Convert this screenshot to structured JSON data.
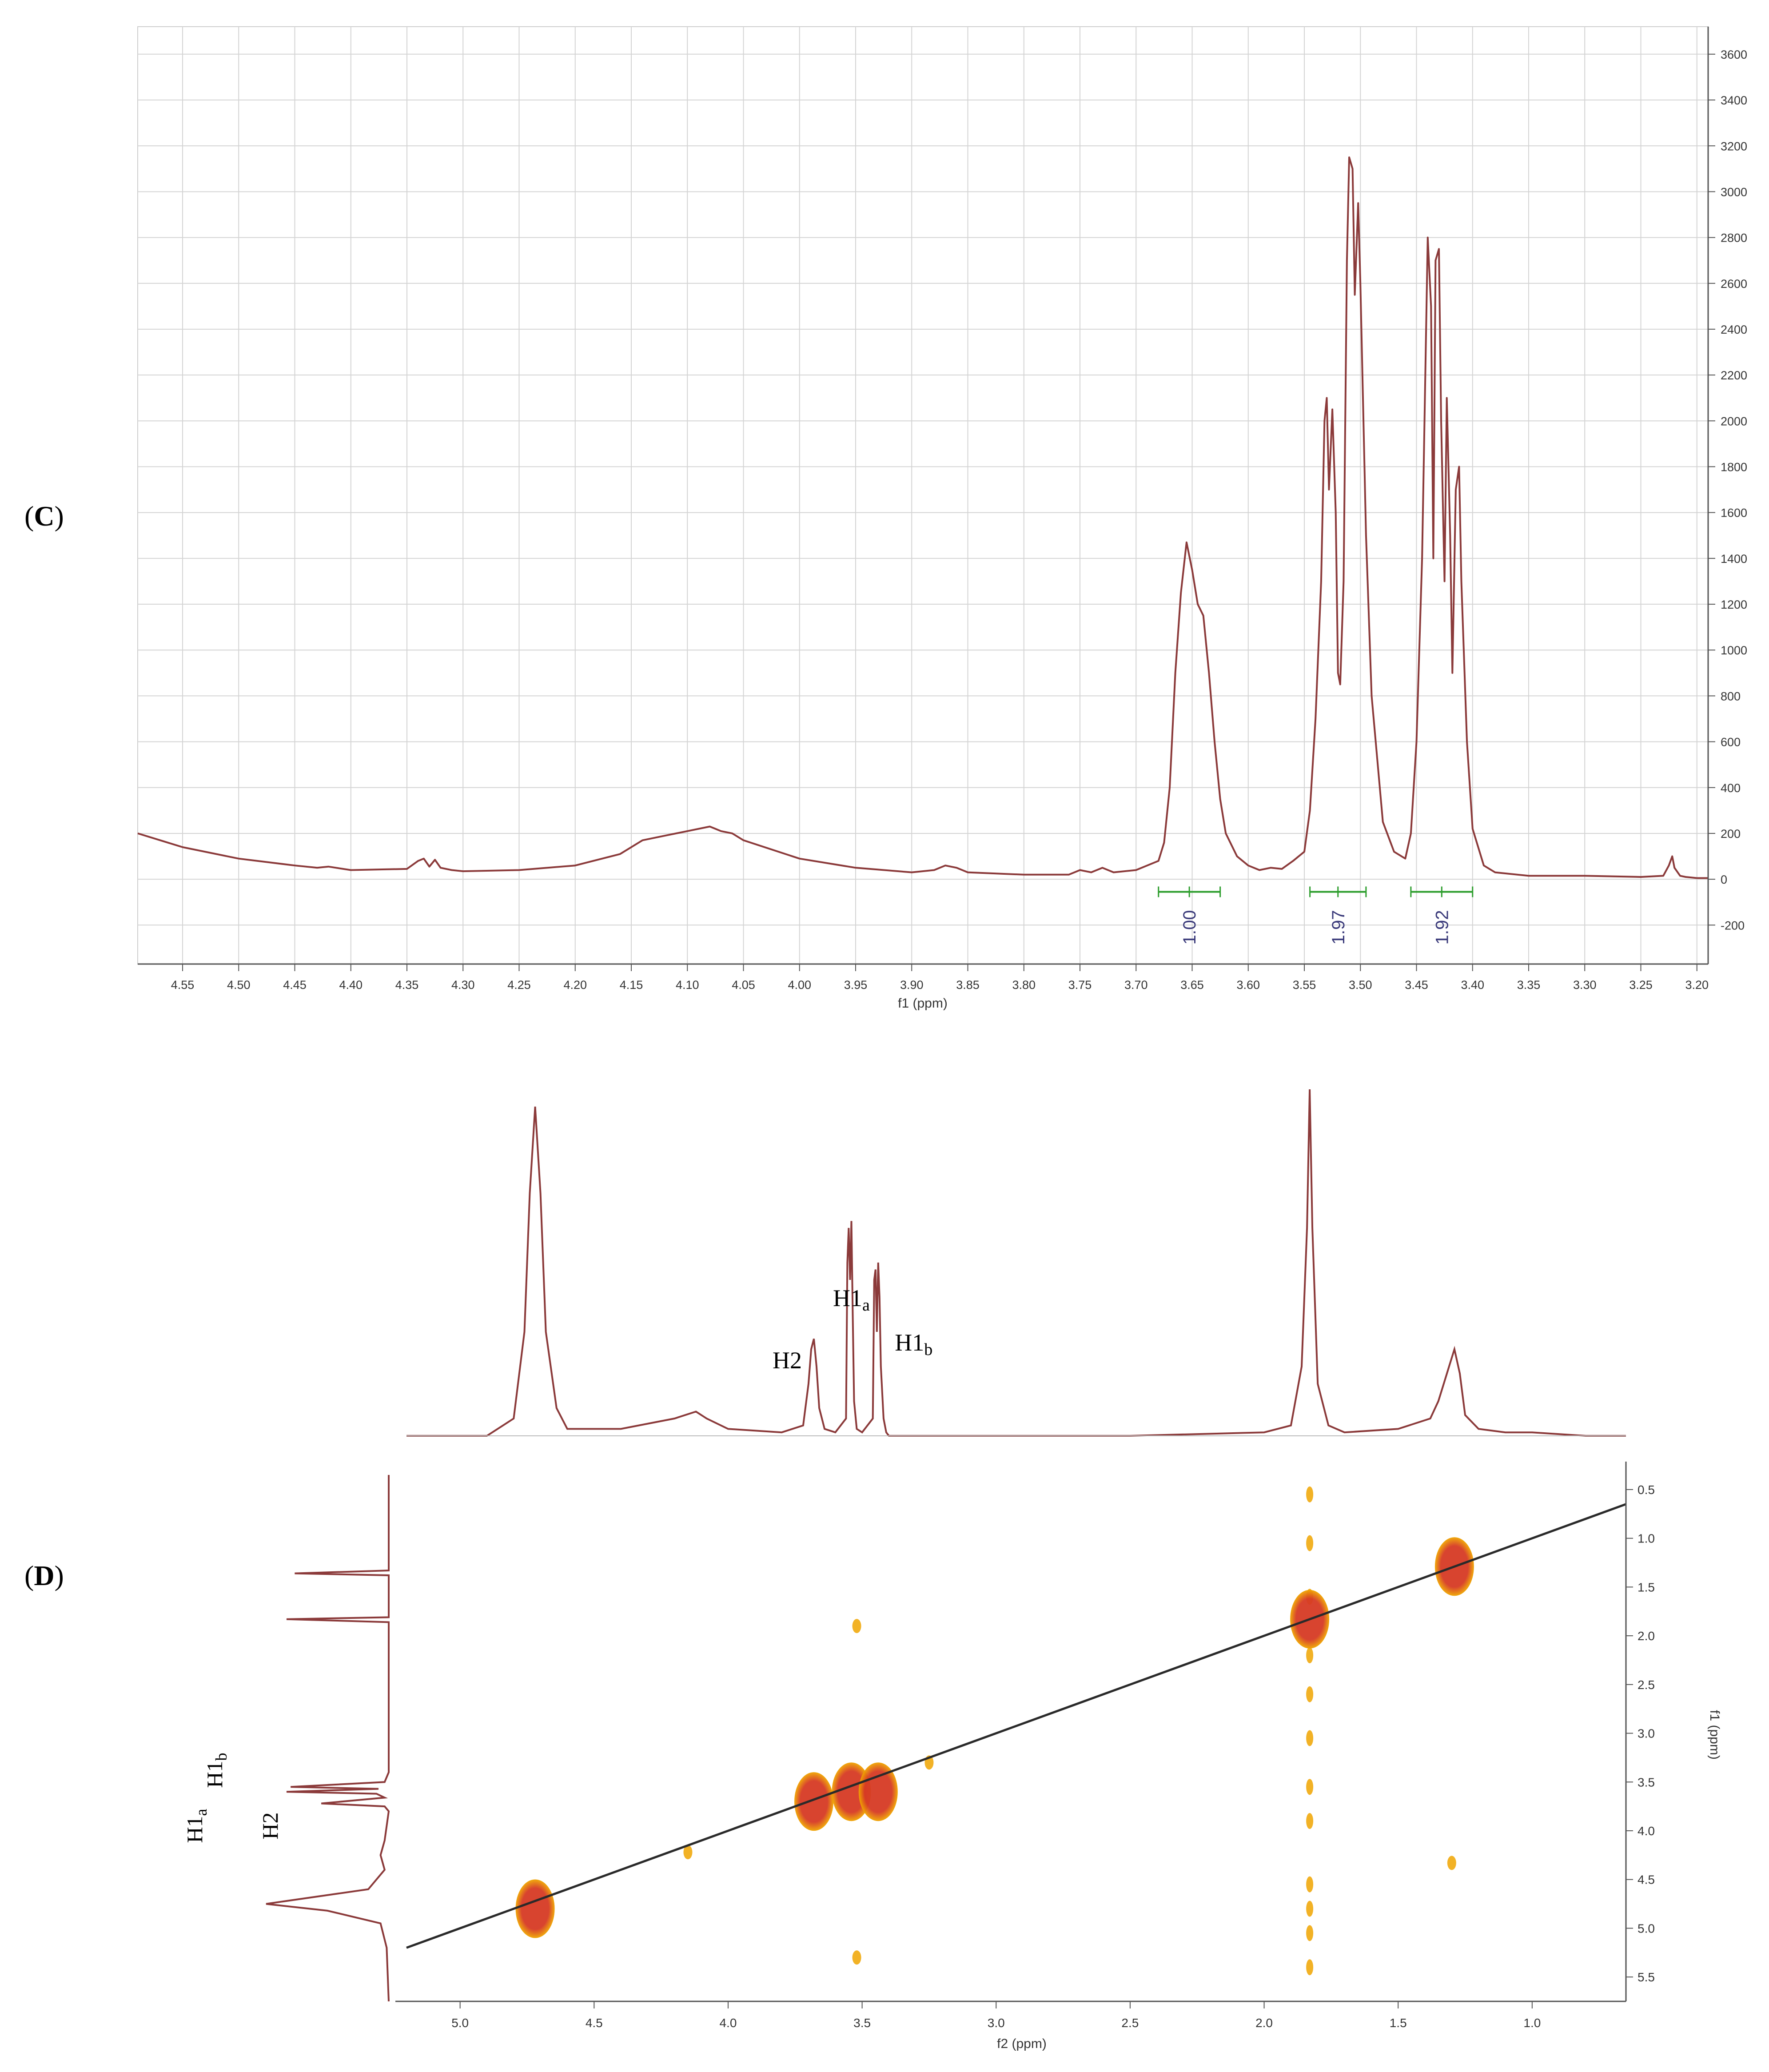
{
  "panels": {
    "C": {
      "label_open": "(",
      "label_letter": "C",
      "label_close": ")"
    },
    "D": {
      "label_open": "(",
      "label_letter": "D",
      "label_close": ")"
    }
  },
  "colors": {
    "spectrum": "#8b3a3a",
    "grid": "#d4d4d4",
    "integral": "#2e9e2e",
    "integral_text": "#3a3a7a",
    "diagonal": "#2a2a2a",
    "cross_peak_core": "#d63a24",
    "cross_peak_edge": "#f0a500"
  },
  "chart_data": [
    {
      "type": "line",
      "panel": "C",
      "xlabel": "f1 (ppm)",
      "ylabel": "",
      "xlim": [
        4.59,
        3.19
      ],
      "ylim": [
        -370,
        3720
      ],
      "x_ticks": [
        "4.55",
        "4.50",
        "4.45",
        "4.40",
        "4.35",
        "4.30",
        "4.25",
        "4.20",
        "4.15",
        "4.10",
        "4.05",
        "4.00",
        "3.95",
        "3.90",
        "3.85",
        "3.80",
        "3.75",
        "3.70",
        "3.65",
        "3.60",
        "3.55",
        "3.50",
        "3.45",
        "3.40",
        "3.35",
        "3.30",
        "3.25",
        "3.20"
      ],
      "y_ticks": [
        "3600",
        "3400",
        "3200",
        "3000",
        "2800",
        "2600",
        "2400",
        "2200",
        "2000",
        "1800",
        "1600",
        "1400",
        "1200",
        "1000",
        "800",
        "600",
        "400",
        "200",
        "0",
        "-200"
      ],
      "grid": true,
      "series": [
        {
          "x": [
            4.59,
            4.55,
            4.5,
            4.45,
            4.43,
            4.42,
            4.4,
            4.35,
            4.34,
            4.335,
            4.33,
            4.325,
            4.32,
            4.31,
            4.3,
            4.25,
            4.2,
            4.16,
            4.15,
            4.14,
            4.12,
            4.1,
            4.08,
            4.075,
            4.07,
            4.06,
            4.05,
            4.0,
            3.95,
            3.9,
            3.88,
            3.87,
            3.86,
            3.85,
            3.8,
            3.76,
            3.75,
            3.74,
            3.73,
            3.72,
            3.7,
            3.68,
            3.675,
            3.67,
            3.665,
            3.66,
            3.655,
            3.65,
            3.645,
            3.64,
            3.635,
            3.63,
            3.625,
            3.62,
            3.61,
            3.6,
            3.59,
            3.58,
            3.57,
            3.56,
            3.55,
            3.545,
            3.54,
            3.535,
            3.532,
            3.53,
            3.528,
            3.525,
            3.522,
            3.52,
            3.518,
            3.515,
            3.512,
            3.51,
            3.507,
            3.505,
            3.502,
            3.5,
            3.495,
            3.49,
            3.48,
            3.47,
            3.46,
            3.455,
            3.45,
            3.445,
            3.44,
            3.437,
            3.435,
            3.433,
            3.43,
            3.428,
            3.425,
            3.423,
            3.42,
            3.418,
            3.415,
            3.412,
            3.41,
            3.405,
            3.4,
            3.39,
            3.38,
            3.35,
            3.3,
            3.25,
            3.23,
            3.225,
            3.222,
            3.22,
            3.215,
            3.21,
            3.2,
            3.19
          ],
          "y": [
            200,
            140,
            90,
            60,
            50,
            55,
            40,
            45,
            80,
            90,
            55,
            85,
            50,
            40,
            35,
            40,
            60,
            110,
            140,
            170,
            190,
            210,
            230,
            220,
            210,
            200,
            170,
            90,
            50,
            30,
            40,
            60,
            50,
            30,
            20,
            20,
            40,
            30,
            50,
            30,
            40,
            80,
            160,
            400,
            900,
            1250,
            1470,
            1350,
            1200,
            1150,
            900,
            600,
            350,
            200,
            100,
            60,
            40,
            50,
            45,
            80,
            120,
            300,
            700,
            1300,
            2000,
            2100,
            1700,
            2050,
            1600,
            900,
            850,
            1300,
            2700,
            3150,
            3100,
            2550,
            2950,
            2600,
            1500,
            800,
            250,
            120,
            90,
            200,
            600,
            1400,
            2800,
            2500,
            1400,
            2700,
            2750,
            2000,
            1300,
            2100,
            1500,
            900,
            1700,
            1800,
            1300,
            600,
            220,
            60,
            30,
            15,
            15,
            10,
            15,
            60,
            100,
            50,
            15,
            10,
            5,
            5
          ]
        }
      ],
      "integrals": [
        {
          "from": 3.68,
          "to": 3.625,
          "value": "1.00"
        },
        {
          "from": 3.545,
          "to": 3.495,
          "value": "1.97"
        },
        {
          "from": 3.455,
          "to": 3.4,
          "value": "1.92"
        }
      ]
    },
    {
      "type": "heatmap",
      "panel": "D",
      "xlabel": "f2 (ppm)",
      "ylabel": "f1 (ppm)",
      "xlim": [
        5.2,
        0.65
      ],
      "ylim": [
        0.35,
        5.75
      ],
      "x_ticks": [
        "5.0",
        "4.5",
        "4.0",
        "3.5",
        "3.0",
        "2.5",
        "2.0",
        "1.5",
        "1.0"
      ],
      "y_ticks": [
        "0.5",
        "1.0",
        "1.5",
        "2.0",
        "2.5",
        "3.0",
        "3.5",
        "4.0",
        "4.5",
        "5.0",
        "5.5"
      ],
      "diagonal": true,
      "cross_peaks": [
        {
          "f2": 4.72,
          "f1": 4.8,
          "intensity": "strong"
        },
        {
          "f2": 3.68,
          "f1": 3.7,
          "intensity": "strong"
        },
        {
          "f2": 3.54,
          "f1": 3.6,
          "intensity": "strong"
        },
        {
          "f2": 3.44,
          "f1": 3.6,
          "intensity": "strong"
        },
        {
          "f2": 1.83,
          "f1": 1.83,
          "intensity": "strong"
        },
        {
          "f2": 1.29,
          "f1": 1.29,
          "intensity": "strong"
        },
        {
          "f2": 3.25,
          "f1": 3.3,
          "intensity": "weak"
        },
        {
          "f2": 4.15,
          "f1": 4.22,
          "intensity": "weak"
        },
        {
          "f2": 3.52,
          "f1": 5.3,
          "intensity": "weak"
        },
        {
          "f2": 3.52,
          "f1": 1.9,
          "intensity": "weak"
        },
        {
          "f2": 1.3,
          "f1": 4.33,
          "intensity": "weak"
        }
      ],
      "t1_streak": {
        "f2": 1.83,
        "f1_points": [
          0.55,
          1.05,
          1.6,
          2.2,
          2.6,
          3.05,
          3.55,
          3.9,
          4.55,
          4.8,
          5.05,
          5.4
        ]
      },
      "projection_top": {
        "x": [
          5.2,
          4.9,
          4.8,
          4.76,
          4.74,
          4.72,
          4.7,
          4.68,
          4.64,
          4.6,
          4.4,
          4.2,
          4.12,
          4.08,
          4.0,
          3.8,
          3.72,
          3.7,
          3.69,
          3.68,
          3.67,
          3.66,
          3.64,
          3.6,
          3.56,
          3.555,
          3.55,
          3.545,
          3.54,
          3.535,
          3.53,
          3.52,
          3.5,
          3.46,
          3.455,
          3.45,
          3.445,
          3.44,
          3.435,
          3.43,
          3.42,
          3.41,
          3.4,
          3.3,
          3.0,
          2.5,
          2.0,
          1.9,
          1.86,
          1.84,
          1.83,
          1.82,
          1.8,
          1.76,
          1.7,
          1.5,
          1.38,
          1.35,
          1.33,
          1.31,
          1.29,
          1.27,
          1.25,
          1.2,
          1.1,
          1.0,
          0.8,
          0.65
        ],
        "y": [
          0,
          0,
          0.05,
          0.3,
          0.7,
          0.95,
          0.7,
          0.3,
          0.08,
          0.02,
          0.02,
          0.05,
          0.07,
          0.05,
          0.02,
          0.01,
          0.03,
          0.15,
          0.25,
          0.28,
          0.2,
          0.08,
          0.02,
          0.01,
          0.05,
          0.5,
          0.6,
          0.45,
          0.62,
          0.35,
          0.1,
          0.02,
          0.01,
          0.05,
          0.45,
          0.48,
          0.3,
          0.5,
          0.4,
          0.2,
          0.05,
          0.01,
          0.0,
          0.0,
          0.0,
          0.0,
          0.01,
          0.03,
          0.2,
          0.6,
          1.0,
          0.6,
          0.15,
          0.03,
          0.01,
          0.02,
          0.05,
          0.1,
          0.15,
          0.2,
          0.25,
          0.18,
          0.06,
          0.02,
          0.01,
          0.01,
          0.0,
          0.0
        ]
      },
      "annotations_top": [
        {
          "text_main": "H2",
          "text_sub": "",
          "f2": 3.68
        },
        {
          "text_main": "H1",
          "text_sub": "a",
          "f2": 3.54
        },
        {
          "text_main": "H1",
          "text_sub": "b",
          "f2": 3.44
        }
      ],
      "annotations_left": [
        {
          "text_main": "H1",
          "text_sub": "a",
          "f1": 3.55
        },
        {
          "text_main": "H1",
          "text_sub": "b",
          "f1": 3.6
        },
        {
          "text_main": "H2",
          "text_sub": "",
          "f1": 3.72
        }
      ]
    }
  ]
}
